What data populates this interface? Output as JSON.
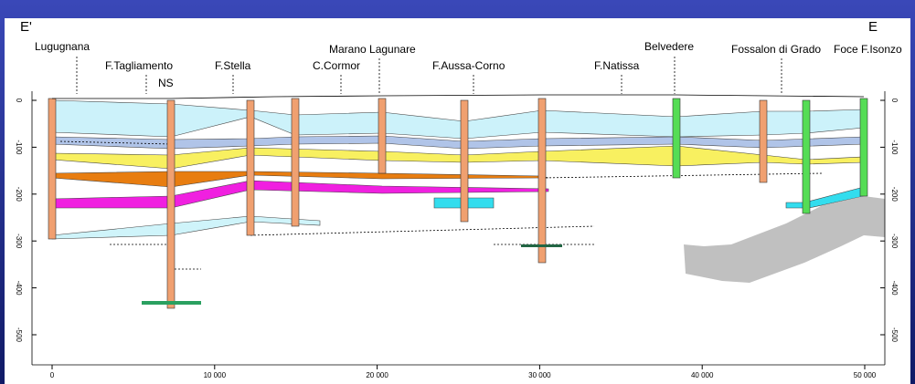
{
  "section": {
    "start_label": "E'",
    "end_label": "E",
    "locations": [
      "Lugugnana",
      "F.Tagliamento",
      "NS",
      "F.Stella",
      "C.Cormor",
      "Marano Lagunare",
      "F.Aussa-Corno",
      "F.Natissa",
      "Belvedere",
      "Fossalon di Grado",
      "Foce F.Isonzo"
    ],
    "y_ticks": [
      0,
      -100,
      -200,
      -300,
      -400,
      -500
    ],
    "x_ticks": [
      0,
      {
        "value": 10000,
        "label": "10 000"
      },
      {
        "value": 20000,
        "label": "20 000"
      },
      {
        "value": 30000,
        "label": "30 000"
      },
      {
        "value": 40000,
        "label": "40 000"
      },
      {
        "value": 50000,
        "label": "50 000"
      }
    ]
  }
}
